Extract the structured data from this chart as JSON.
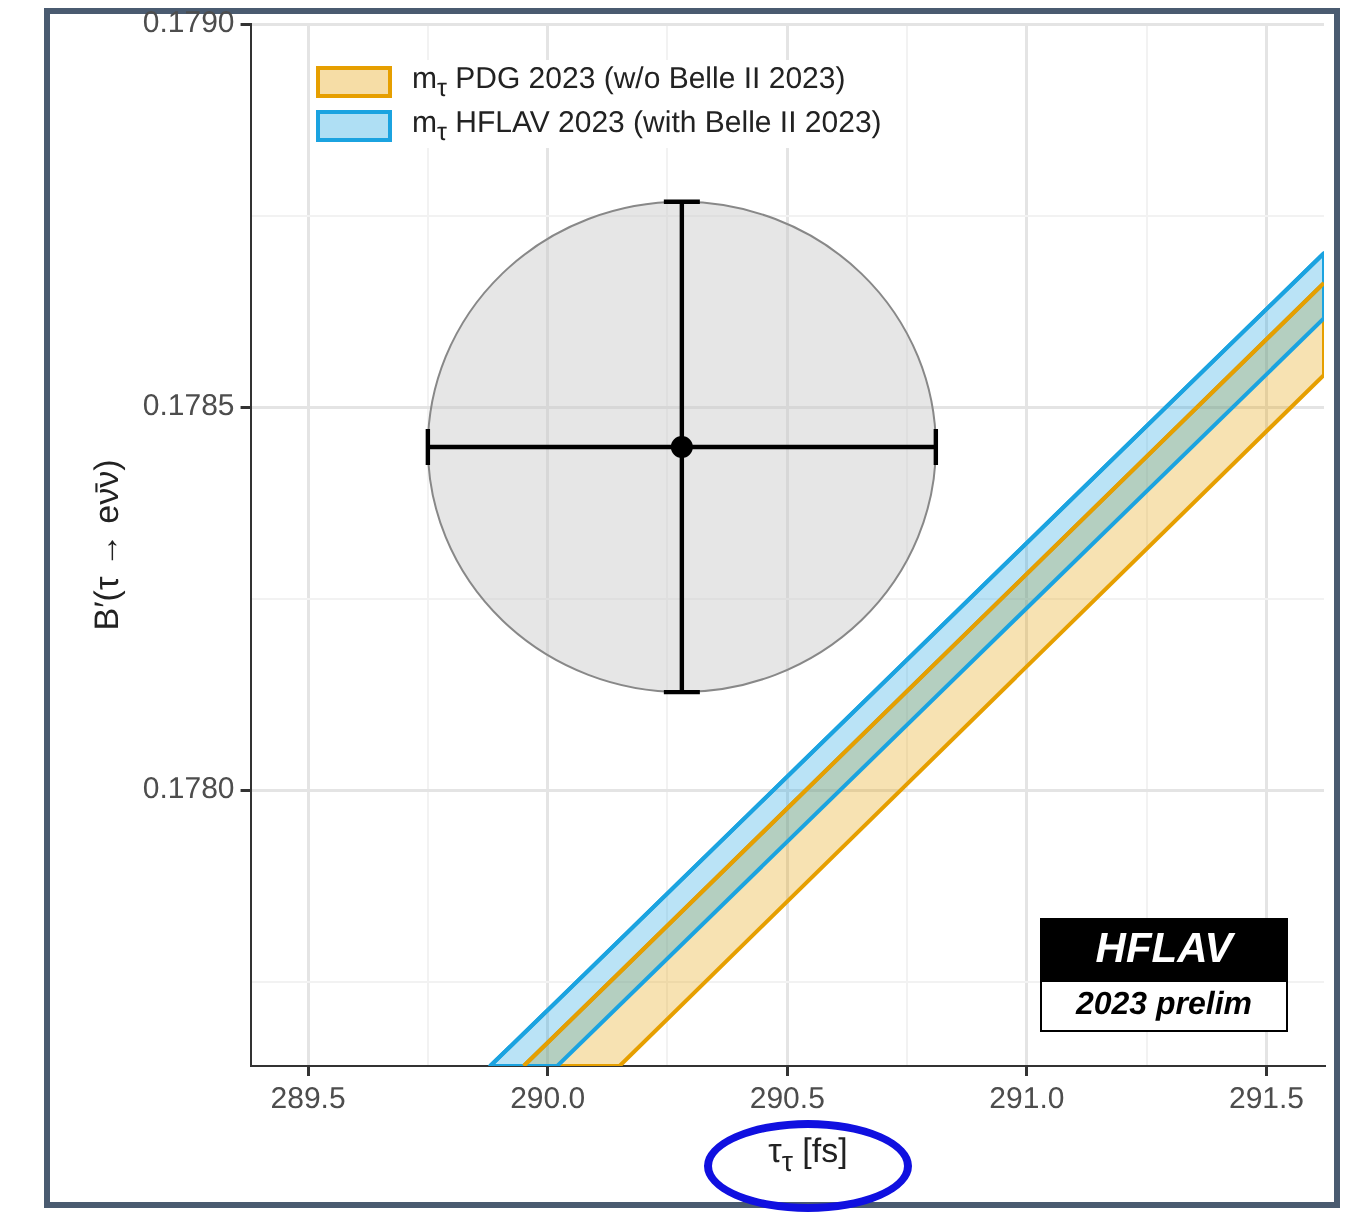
{
  "chart_data": {
    "type": "line",
    "xlabel": "τ$_{τ}$ [fs]",
    "ylabel": "B′(τ → eν̄ν)",
    "xlim": [
      289.38,
      291.62
    ],
    "ylim": [
      0.17764,
      0.179
    ],
    "xticks": [
      289.5,
      {
        "value": 289.75,
        "label": null
      },
      {
        "value": 290,
        "label": "290.0"
      },
      {
        "value": 290.25,
        "label": null
      },
      290.5,
      {
        "value": 290.75,
        "label": null
      },
      {
        "value": 291,
        "label": "291.0"
      },
      {
        "value": 291.25,
        "label": null
      },
      291.5
    ],
    "yticks": [
      {
        "value": 0.17775,
        "label": null
      },
      {
        "value": 0.178,
        "label": "0.1780"
      },
      {
        "value": 0.17825,
        "label": null
      },
      0.1785,
      {
        "value": 0.17875,
        "label": null
      },
      {
        "value": 0.179,
        "label": "0.1790"
      }
    ],
    "grid": true,
    "legend": "top left",
    "series": [
      {
        "name": "m$_{τ}$ PDG 2023 (w/o Belle II 2023)",
        "color": "#e69f00",
        "x": [
          289.95,
          290.15,
          291.62
        ],
        "values": [
          0.17764,
          0.177762,
          0.178662
        ],
        "upper": [
          0.17764,
          0.177762,
          0.178662
        ],
        "lower": [
          0.17764,
          0.17764,
          0.178542
        ]
      },
      {
        "name": "m$_{τ}$ HFLAV 2023 (with Belle II 2023)",
        "color": "#1ba3e0",
        "x": [
          289.88,
          290.02,
          291.62
        ],
        "values": [
          0.17764,
          0.177725,
          0.178701
        ],
        "upper": [
          0.17764,
          0.177725,
          0.178701
        ],
        "lower": [
          0.17764,
          0.17764,
          0.178616
        ]
      },
      {
        "type": "scatter",
        "marker": "circle",
        "color": "#000000",
        "x": [
          290.28
        ],
        "values": [
          0.178448
        ],
        "xerrors": [
          0.53
        ],
        "errors": [
          0.00032
        ]
      }
    ],
    "annotations": [
      "HFLAV",
      "2023 prelim"
    ]
  }
}
